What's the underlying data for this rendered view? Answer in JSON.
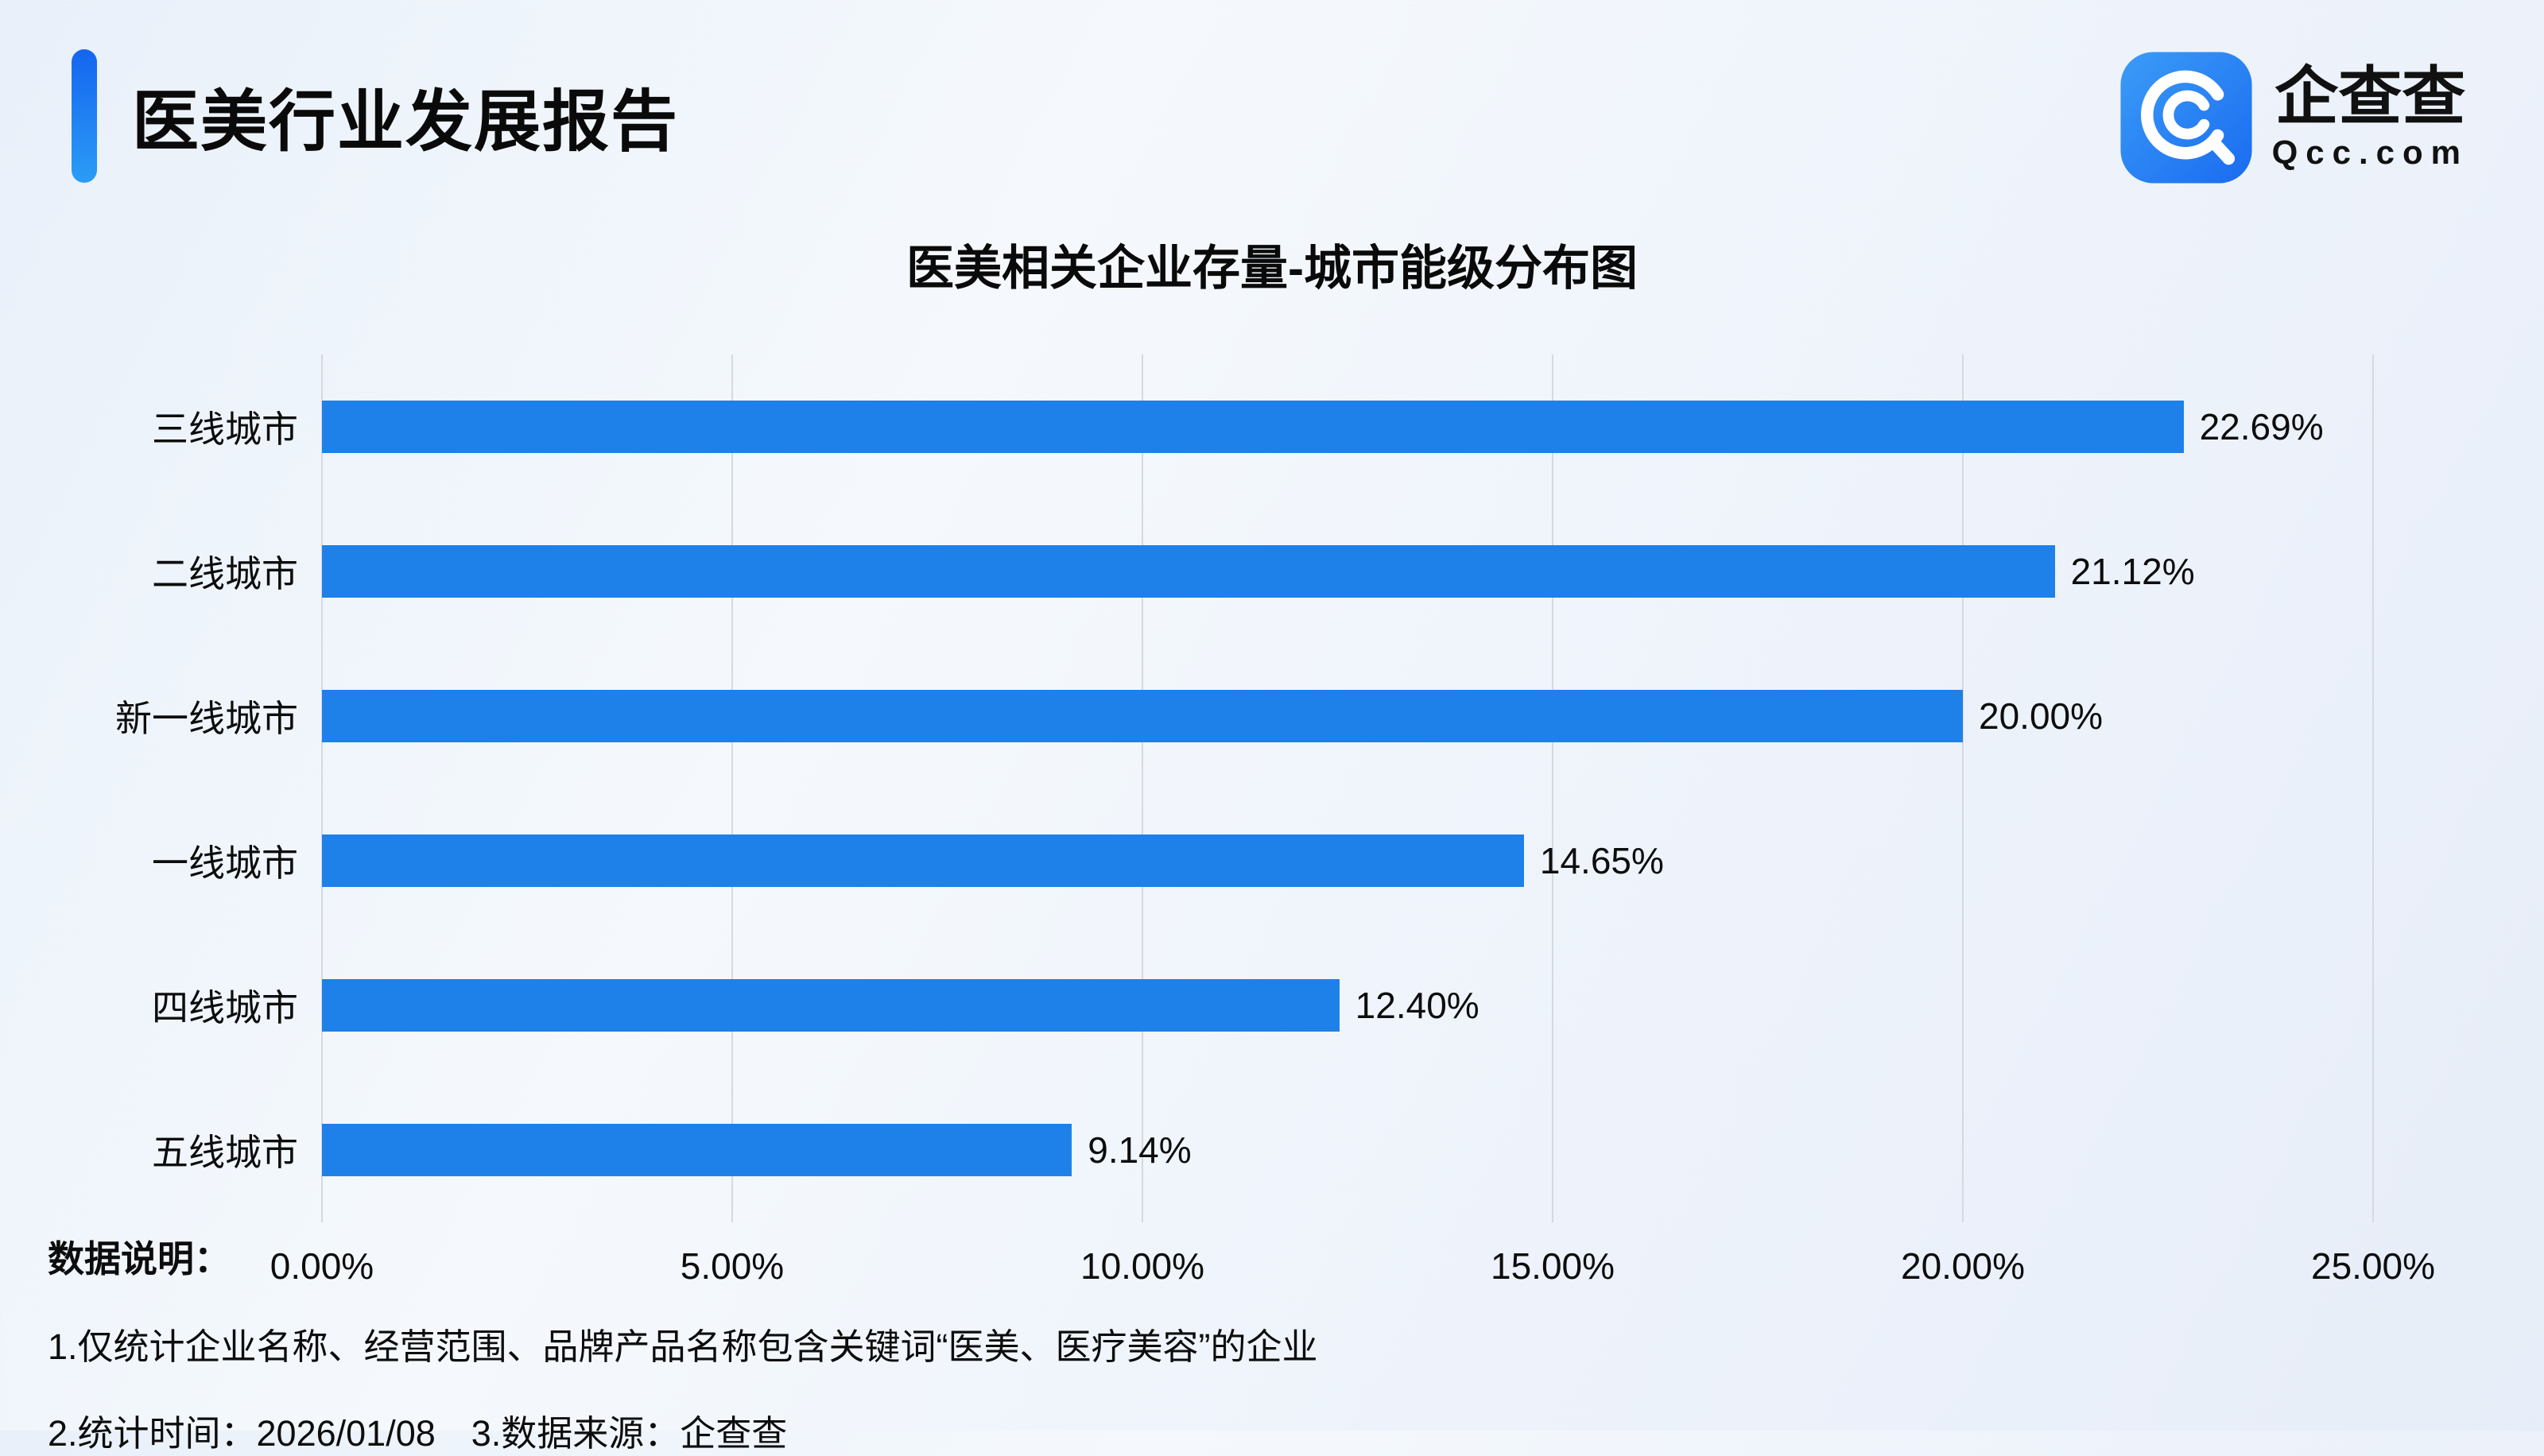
{
  "page": {
    "report_title": "医美行业发展报告",
    "logo": {
      "brand": "企查查",
      "domain": "Qcc.com"
    },
    "footer": {
      "label": "数据说明：",
      "note1": "1.仅统计企业名称、经营范围、品牌产品名称包含关键词“医美、医疗美容”的企业",
      "note2": "2.统计时间：2026/01/08　3.数据来源：企查查"
    }
  },
  "chart_data": {
    "type": "bar",
    "orientation": "horizontal",
    "title": "医美相关企业存量-城市能级分布图",
    "categories": [
      "三线城市",
      "二线城市",
      "新一线城市",
      "一线城市",
      "四线城市",
      "五线城市"
    ],
    "values": [
      22.69,
      21.12,
      20.0,
      14.65,
      12.4,
      9.14
    ],
    "value_labels": [
      "22.69%",
      "21.12%",
      "20.00%",
      "14.65%",
      "12.40%",
      "9.14%"
    ],
    "xlabel": "",
    "ylabel": "",
    "xlim": [
      0,
      25
    ],
    "x_tick_values": [
      0,
      5,
      10,
      15,
      20,
      25
    ],
    "x_ticks": [
      "0.00%",
      "5.00%",
      "10.00%",
      "15.00%",
      "20.00%",
      "25.00%"
    ],
    "bar_color": "#1e80e9",
    "grid": true,
    "legend": "none"
  }
}
